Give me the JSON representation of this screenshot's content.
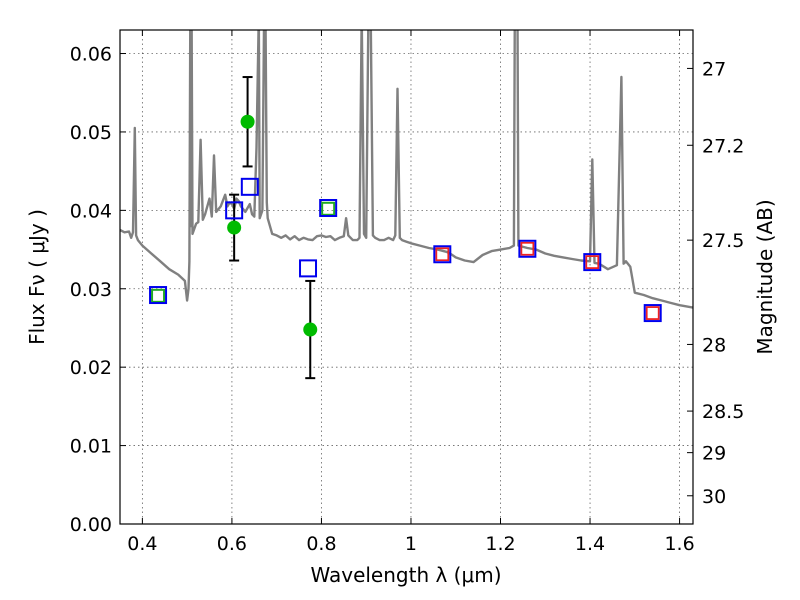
{
  "chart_data": {
    "type": "scatter",
    "xlabel": "Wavelength  λ (μm)",
    "ylabel_left": "Flux  Fν  ( μJy )",
    "ylabel_right": "Magnitude (AB)",
    "xlim": [
      0.35,
      1.63
    ],
    "ylim": [
      0.0,
      0.063
    ],
    "grid": true,
    "x_ticks": [
      0.4,
      0.6,
      0.8,
      1.0,
      1.2,
      1.4,
      1.6
    ],
    "x_tick_labels": [
      "0.4",
      "0.6",
      "0.8",
      "1",
      "1.2",
      "1.4",
      "1.6"
    ],
    "y_ticks": [
      0.0,
      0.01,
      0.02,
      0.03,
      0.04,
      0.05,
      0.06
    ],
    "y_tick_labels": [
      "0.00",
      "0.01",
      "0.02",
      "0.03",
      "0.04",
      "0.05",
      "0.06"
    ],
    "right_ticks": [
      {
        "flux": 0.0581,
        "label": "27"
      },
      {
        "flux": 0.0483,
        "label": "27.2"
      },
      {
        "flux": 0.0362,
        "label": "27.5"
      },
      {
        "flux": 0.0229,
        "label": "28"
      },
      {
        "flux": 0.0144,
        "label": "28.5"
      },
      {
        "flux": 0.0091,
        "label": "29"
      },
      {
        "flux": 0.0036,
        "label": "30"
      }
    ],
    "colors": {
      "model": "#808080",
      "observed": "#00bb00",
      "model_box": "#0000ee",
      "green_box": "#22aa22",
      "red_box": "#ee2222",
      "errorbar": "#000000"
    },
    "series": [
      {
        "kind": "model_spectrum",
        "points": [
          [
            0.35,
            0.0375
          ],
          [
            0.36,
            0.0372
          ],
          [
            0.37,
            0.0373
          ],
          [
            0.375,
            0.0365
          ],
          [
            0.379,
            0.0372
          ],
          [
            0.383,
            0.0505
          ],
          [
            0.386,
            0.0368
          ],
          [
            0.39,
            0.0362
          ],
          [
            0.4,
            0.0355
          ],
          [
            0.42,
            0.0345
          ],
          [
            0.44,
            0.0335
          ],
          [
            0.46,
            0.0325
          ],
          [
            0.48,
            0.0318
          ],
          [
            0.495,
            0.031
          ],
          [
            0.5,
            0.0285
          ],
          [
            0.503,
            0.03
          ],
          [
            0.505,
            0.0335
          ],
          [
            0.507,
            0.065
          ],
          [
            0.509,
            0.038
          ],
          [
            0.51,
            0.065
          ],
          [
            0.512,
            0.037
          ],
          [
            0.52,
            0.0383
          ],
          [
            0.525,
            0.0385
          ],
          [
            0.53,
            0.049
          ],
          [
            0.535,
            0.0388
          ],
          [
            0.54,
            0.0395
          ],
          [
            0.55,
            0.0415
          ],
          [
            0.555,
            0.0392
          ],
          [
            0.56,
            0.047
          ],
          [
            0.565,
            0.0398
          ],
          [
            0.575,
            0.0405
          ],
          [
            0.585,
            0.042
          ],
          [
            0.59,
            0.0405
          ],
          [
            0.595,
            0.041
          ],
          [
            0.6,
            0.0408
          ],
          [
            0.605,
            0.0402
          ],
          [
            0.61,
            0.0415
          ],
          [
            0.615,
            0.0412
          ],
          [
            0.62,
            0.0405
          ],
          [
            0.63,
            0.0398
          ],
          [
            0.64,
            0.0408
          ],
          [
            0.645,
            0.0395
          ],
          [
            0.65,
            0.0392
          ],
          [
            0.655,
            0.048
          ],
          [
            0.66,
            0.065
          ],
          [
            0.662,
            0.039
          ],
          [
            0.668,
            0.04
          ],
          [
            0.672,
            0.065
          ],
          [
            0.675,
            0.065
          ],
          [
            0.678,
            0.041
          ],
          [
            0.68,
            0.039
          ],
          [
            0.69,
            0.037
          ],
          [
            0.7,
            0.0368
          ],
          [
            0.71,
            0.0365
          ],
          [
            0.72,
            0.0368
          ],
          [
            0.73,
            0.0363
          ],
          [
            0.74,
            0.0367
          ],
          [
            0.75,
            0.0362
          ],
          [
            0.76,
            0.0365
          ],
          [
            0.77,
            0.0363
          ],
          [
            0.78,
            0.0362
          ],
          [
            0.79,
            0.0367
          ],
          [
            0.8,
            0.0368
          ],
          [
            0.81,
            0.0366
          ],
          [
            0.82,
            0.0367
          ],
          [
            0.83,
            0.0362
          ],
          [
            0.84,
            0.0365
          ],
          [
            0.85,
            0.0367
          ],
          [
            0.855,
            0.039
          ],
          [
            0.86,
            0.0368
          ],
          [
            0.87,
            0.0362
          ],
          [
            0.88,
            0.0362
          ],
          [
            0.885,
            0.0365
          ],
          [
            0.89,
            0.065
          ],
          [
            0.895,
            0.037
          ],
          [
            0.9,
            0.0365
          ],
          [
            0.905,
            0.065
          ],
          [
            0.91,
            0.065
          ],
          [
            0.915,
            0.0368
          ],
          [
            0.92,
            0.0365
          ],
          [
            0.93,
            0.0362
          ],
          [
            0.94,
            0.0362
          ],
          [
            0.95,
            0.0365
          ],
          [
            0.96,
            0.0362
          ],
          [
            0.965,
            0.0368
          ],
          [
            0.97,
            0.0555
          ],
          [
            0.975,
            0.0365
          ],
          [
            0.98,
            0.0362
          ],
          [
            0.99,
            0.036
          ],
          [
            1.0,
            0.0358
          ],
          [
            1.02,
            0.0355
          ],
          [
            1.04,
            0.0352
          ],
          [
            1.06,
            0.035
          ],
          [
            1.08,
            0.0347
          ],
          [
            1.09,
            0.0344
          ],
          [
            1.1,
            0.034
          ],
          [
            1.12,
            0.0336
          ],
          [
            1.14,
            0.0334
          ],
          [
            1.16,
            0.0343
          ],
          [
            1.18,
            0.0348
          ],
          [
            1.2,
            0.035
          ],
          [
            1.22,
            0.0352
          ],
          [
            1.23,
            0.0355
          ],
          [
            1.232,
            0.065
          ],
          [
            1.238,
            0.065
          ],
          [
            1.24,
            0.0355
          ],
          [
            1.26,
            0.0352
          ],
          [
            1.28,
            0.035
          ],
          [
            1.3,
            0.0345
          ],
          [
            1.32,
            0.0342
          ],
          [
            1.34,
            0.034
          ],
          [
            1.36,
            0.0338
          ],
          [
            1.38,
            0.0336
          ],
          [
            1.4,
            0.0335
          ],
          [
            1.405,
            0.0465
          ],
          [
            1.41,
            0.0333
          ],
          [
            1.42,
            0.0332
          ],
          [
            1.44,
            0.0325
          ],
          [
            1.46,
            0.033
          ],
          [
            1.47,
            0.057
          ],
          [
            1.475,
            0.0332
          ],
          [
            1.48,
            0.0335
          ],
          [
            1.49,
            0.0328
          ],
          [
            1.5,
            0.0295
          ],
          [
            1.52,
            0.0292
          ],
          [
            1.54,
            0.0288
          ],
          [
            1.56,
            0.0285
          ],
          [
            1.58,
            0.0282
          ],
          [
            1.6,
            0.0279
          ],
          [
            1.63,
            0.0276
          ]
        ]
      },
      {
        "kind": "observed_points",
        "points": [
          {
            "x": 0.605,
            "y": 0.0378,
            "err": 0.0042
          },
          {
            "x": 0.635,
            "y": 0.0513,
            "err": 0.0057
          },
          {
            "x": 0.775,
            "y": 0.0248,
            "err": 0.0062
          }
        ]
      },
      {
        "kind": "model_photometry_blue_boxes",
        "points": [
          [
            0.435,
            0.0292
          ],
          [
            0.605,
            0.04
          ],
          [
            0.64,
            0.043
          ],
          [
            0.77,
            0.0326
          ],
          [
            0.815,
            0.0403
          ],
          [
            1.07,
            0.0344
          ],
          [
            1.26,
            0.0351
          ],
          [
            1.405,
            0.0334
          ],
          [
            1.54,
            0.0269
          ]
        ]
      },
      {
        "kind": "observed_photometry_green_boxes",
        "points": [
          [
            0.435,
            0.0291
          ],
          [
            0.815,
            0.0402
          ]
        ]
      },
      {
        "kind": "observed_photometry_red_boxes",
        "points": [
          [
            1.07,
            0.0344
          ],
          [
            1.26,
            0.0351
          ],
          [
            1.405,
            0.0334
          ],
          [
            1.54,
            0.0269
          ]
        ]
      }
    ]
  }
}
